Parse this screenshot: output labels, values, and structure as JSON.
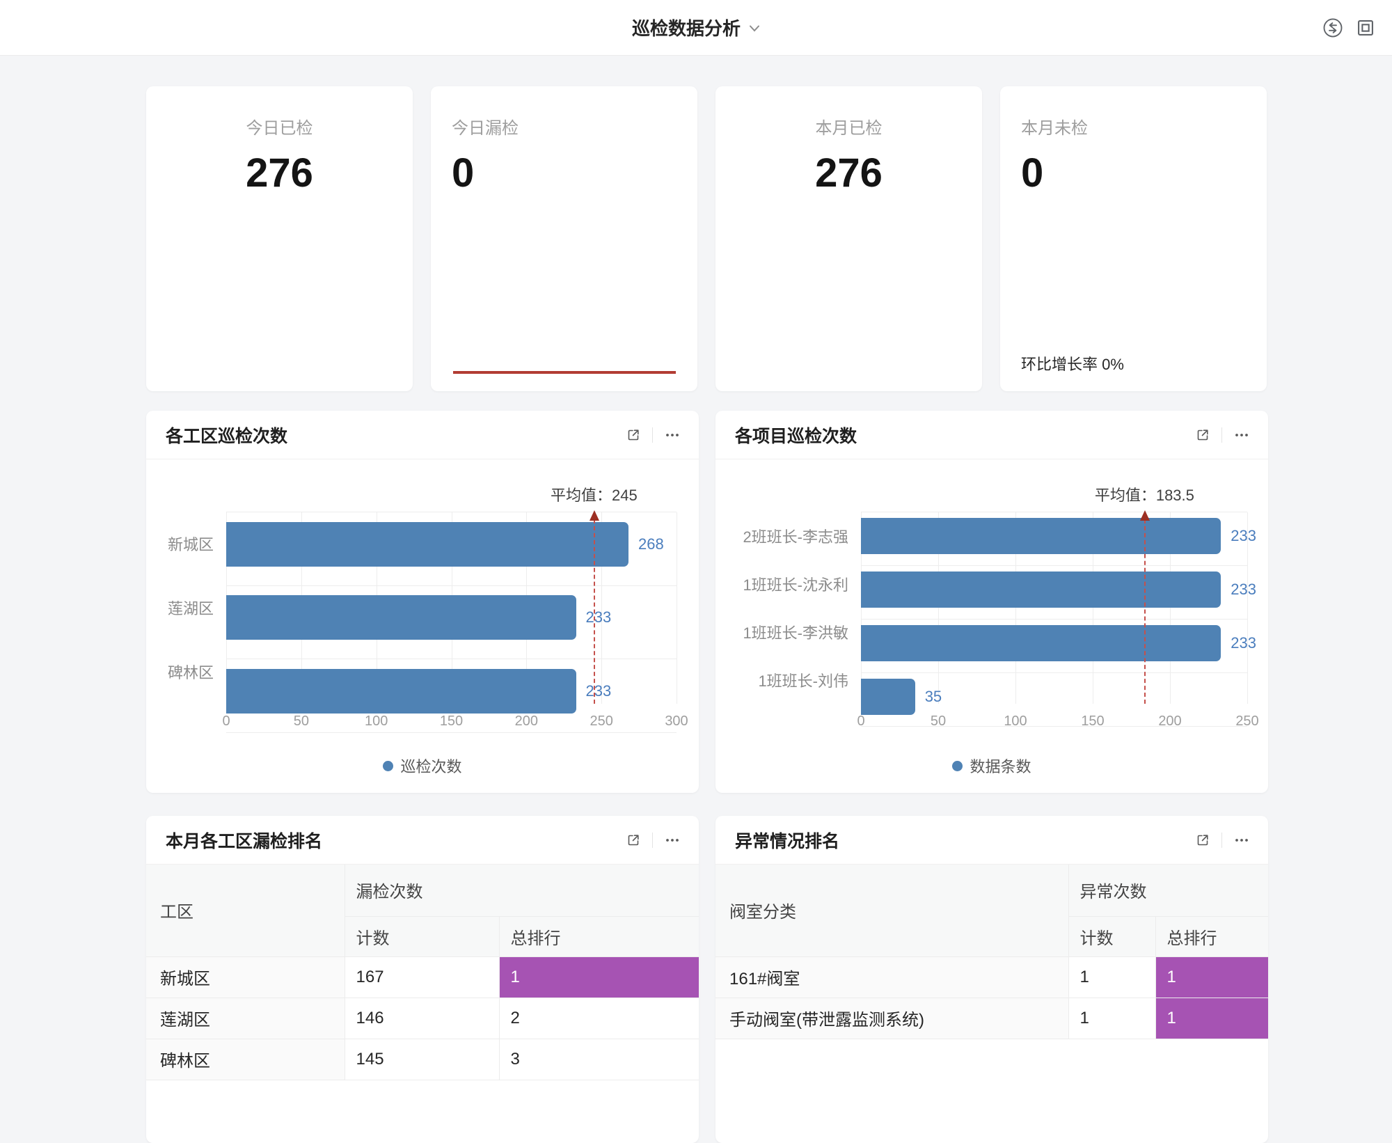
{
  "header": {
    "title": "巡检数据分析"
  },
  "stats": [
    {
      "label": "今日已检",
      "value": "276"
    },
    {
      "label": "今日漏检",
      "value": "0"
    },
    {
      "label": "本月已检",
      "value": "276"
    },
    {
      "label": "本月未检",
      "value": "0",
      "footer": "环比增长率 0%"
    }
  ],
  "chart_data": [
    {
      "type": "bar",
      "orientation": "horizontal",
      "title": "各工区巡检次数",
      "categories": [
        "新城区",
        "莲湖区",
        "碑林区"
      ],
      "values": [
        268,
        233,
        233
      ],
      "ticks": [
        0,
        50,
        100,
        150,
        200,
        250,
        300
      ],
      "xlim": [
        0,
        300
      ],
      "avg_label": "平均值：",
      "average": 245,
      "legend": "巡检次数",
      "legend_position": "bottom",
      "grid": true,
      "bar_color": "#4f82b4"
    },
    {
      "type": "bar",
      "orientation": "horizontal",
      "title": "各项目巡检次数",
      "categories": [
        "2班班长-李志强",
        "1班班长-沈永利",
        "1班班长-李洪敏",
        "1班班长-刘伟"
      ],
      "values": [
        233,
        233,
        233,
        35
      ],
      "ticks": [
        0,
        50,
        100,
        150,
        200,
        250
      ],
      "xlim": [
        0,
        250
      ],
      "avg_label": "平均值：",
      "average": 183.5,
      "legend": "数据条数",
      "legend_position": "bottom",
      "grid": true,
      "bar_color": "#4f82b4"
    }
  ],
  "tables": [
    {
      "title": "本月各工区漏检排名",
      "col_header": "工区",
      "group_header": "漏检次数",
      "sub_headers": [
        "计数",
        "总排行"
      ],
      "rows": [
        {
          "name": "新城区",
          "count": "167",
          "rank": "1",
          "highlight": true
        },
        {
          "name": "莲湖区",
          "count": "146",
          "rank": "2",
          "highlight": false
        },
        {
          "name": "碑林区",
          "count": "145",
          "rank": "3",
          "highlight": false
        }
      ]
    },
    {
      "title": "异常情况排名",
      "col_header": "阀室分类",
      "group_header": "异常次数",
      "sub_headers": [
        "计数",
        "总排行"
      ],
      "rows": [
        {
          "name": "161#阀室",
          "count": "1",
          "rank": "1",
          "highlight": true
        },
        {
          "name": "手动阀室(带泄露监测系统)",
          "count": "1",
          "rank": "1",
          "highlight": true
        }
      ]
    }
  ],
  "colors": {
    "bar_blue": "#4f82b4",
    "value_label_blue": "#4a7dbd",
    "average_line_red": "#c5504b",
    "average_arrow_red": "#9c2f23",
    "underline_red": "#b23c33",
    "rank_highlight_purple": "#a653b3"
  }
}
